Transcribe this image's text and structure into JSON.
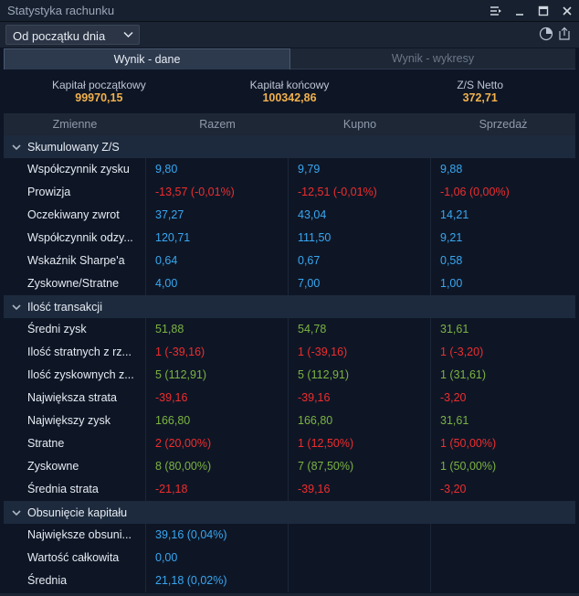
{
  "window": {
    "title": "Statystyka rachunku",
    "controls": [
      "list-menu-icon",
      "minimize-icon",
      "maximize-icon",
      "close-icon"
    ]
  },
  "toolbar": {
    "period_selected": "Od początku dnia",
    "icons": [
      "pie-chart-icon",
      "export-icon"
    ]
  },
  "tabs": [
    {
      "label": "Wynik - dane",
      "active": true
    },
    {
      "label": "Wynik - wykresy",
      "active": false
    }
  ],
  "summary": [
    {
      "label": "Kapitał początkowy",
      "value": "99970,15"
    },
    {
      "label": "Kapitał końcowy",
      "value": "100342,86"
    },
    {
      "label": "Z/S Netto",
      "value": "372,71"
    }
  ],
  "columns": [
    "Zmienne",
    "Razem",
    "Kupno",
    "Sprzedaż"
  ],
  "colors": {
    "positive": "#39a7f0",
    "negative": "#ef2d2d",
    "profit": "#7cb342",
    "summary_value": "#f2b14c",
    "background": "#0e1626",
    "section_bg": "#1d2a3d"
  },
  "sections": [
    {
      "title": "Skumulowany Z/S",
      "rows": [
        {
          "name": "Współczynnik zysku",
          "values": [
            "9,80",
            "9,79",
            "9,88"
          ],
          "colors": [
            "blue",
            "blue",
            "blue"
          ]
        },
        {
          "name": "Prowizja",
          "values": [
            "-13,57 (-0,01%)",
            "-12,51 (-0,01%)",
            "-1,06 (0,00%)"
          ],
          "colors": [
            "red",
            "red",
            "red"
          ]
        },
        {
          "name": "Oczekiwany zwrot",
          "values": [
            "37,27",
            "43,04",
            "14,21"
          ],
          "colors": [
            "blue",
            "blue",
            "blue"
          ]
        },
        {
          "name": "Współczynnik odzy...",
          "values": [
            "120,71",
            "111,50",
            "9,21"
          ],
          "colors": [
            "blue",
            "blue",
            "blue"
          ]
        },
        {
          "name": "Wskaźnik Sharpe'a",
          "values": [
            "0,64",
            "0,67",
            "0,58"
          ],
          "colors": [
            "blue",
            "blue",
            "blue"
          ]
        },
        {
          "name": "Zyskowne/Stratne",
          "values": [
            "4,00",
            "7,00",
            "1,00"
          ],
          "colors": [
            "blue",
            "blue",
            "blue"
          ]
        }
      ]
    },
    {
      "title": "Ilość transakcji",
      "rows": [
        {
          "name": "Średni zysk",
          "values": [
            "51,88",
            "54,78",
            "31,61"
          ],
          "colors": [
            "green",
            "green",
            "green"
          ]
        },
        {
          "name": "Ilość stratnych z rz...",
          "values": [
            "1 (-39,16)",
            "1 (-39,16)",
            "1 (-3,20)"
          ],
          "colors": [
            "red",
            "red",
            "red"
          ]
        },
        {
          "name": "Ilość zyskownych z...",
          "values": [
            "5 (112,91)",
            "5 (112,91)",
            "1 (31,61)"
          ],
          "colors": [
            "green",
            "green",
            "green"
          ]
        },
        {
          "name": "Największa strata",
          "values": [
            "-39,16",
            "-39,16",
            "-3,20"
          ],
          "colors": [
            "red",
            "red",
            "red"
          ]
        },
        {
          "name": "Największy zysk",
          "values": [
            "166,80",
            "166,80",
            "31,61"
          ],
          "colors": [
            "green",
            "green",
            "green"
          ]
        },
        {
          "name": "Stratne",
          "values": [
            "2 (20,00%)",
            "1 (12,50%)",
            "1 (50,00%)"
          ],
          "colors": [
            "red",
            "red",
            "red"
          ]
        },
        {
          "name": "Zyskowne",
          "values": [
            "8 (80,00%)",
            "7 (87,50%)",
            "1 (50,00%)"
          ],
          "colors": [
            "green",
            "green",
            "green"
          ]
        },
        {
          "name": "Średnia strata",
          "values": [
            "-21,18",
            "-39,16",
            "-3,20"
          ],
          "colors": [
            "red",
            "red",
            "red"
          ]
        }
      ]
    },
    {
      "title": "Obsunięcie kapitału",
      "rows": [
        {
          "name": "Największe obsuni...",
          "values": [
            "39,16 (0,04%)",
            "",
            ""
          ],
          "colors": [
            "blue",
            "blue",
            "blue"
          ]
        },
        {
          "name": "Wartość całkowita",
          "values": [
            "0,00",
            "",
            ""
          ],
          "colors": [
            "blue",
            "blue",
            "blue"
          ]
        },
        {
          "name": "Średnia",
          "values": [
            "21,18 (0,02%)",
            "",
            ""
          ],
          "colors": [
            "blue",
            "blue",
            "blue"
          ]
        }
      ]
    }
  ]
}
